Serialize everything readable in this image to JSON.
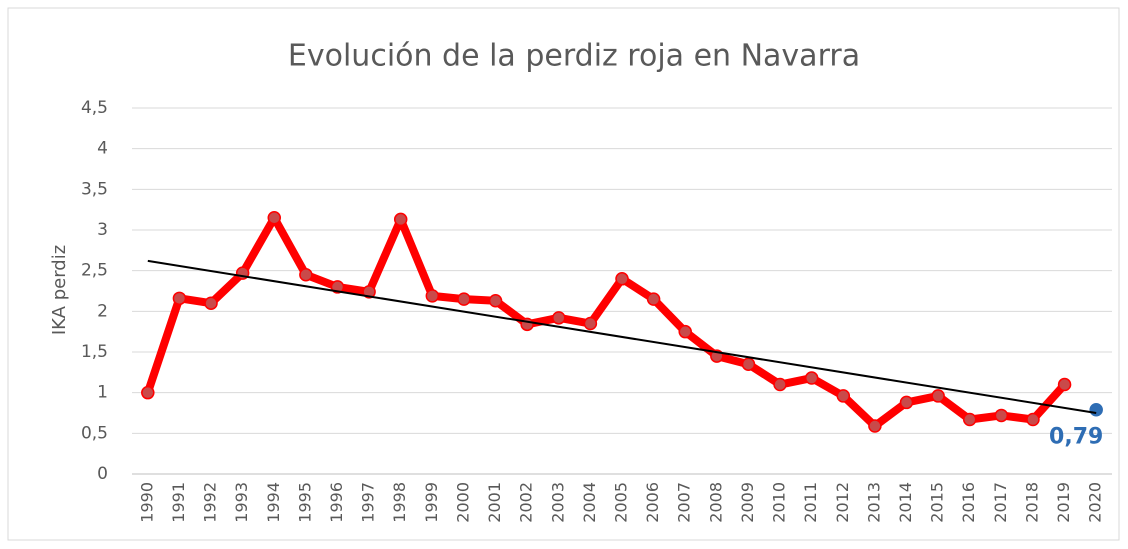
{
  "chart_data": {
    "type": "line",
    "title": "Evolución de la perdiz roja en Navarra",
    "y_label": "IKA perdiz",
    "categories": [
      "1990",
      "1991",
      "1992",
      "1993",
      "1994",
      "1995",
      "1996",
      "1997",
      "1998",
      "1999",
      "2000",
      "2001",
      "2002",
      "2003",
      "2004",
      "2005",
      "2006",
      "2007",
      "2008",
      "2009",
      "2010",
      "2011",
      "2012",
      "2013",
      "2014",
      "2015",
      "2016",
      "2017",
      "2018",
      "2019",
      "2020"
    ],
    "series": [
      {
        "color": "#ff0000",
        "values": [
          1.0,
          2.16,
          2.1,
          2.47,
          3.15,
          2.45,
          2.3,
          2.24,
          3.13,
          2.19,
          2.15,
          2.13,
          1.84,
          1.92,
          1.85,
          2.4,
          2.15,
          1.75,
          1.45,
          1.35,
          1.1,
          1.18,
          0.96,
          0.59,
          0.88,
          0.96,
          0.67,
          0.72,
          0.67,
          1.1,
          null
        ]
      },
      {
        "color": "#2e6db4",
        "values": [
          null,
          null,
          null,
          null,
          null,
          null,
          null,
          null,
          null,
          null,
          null,
          null,
          null,
          null,
          null,
          null,
          null,
          null,
          null,
          null,
          null,
          null,
          null,
          null,
          null,
          null,
          null,
          null,
          null,
          null,
          0.79
        ],
        "value_labels": [
          null,
          null,
          null,
          null,
          null,
          null,
          null,
          null,
          null,
          null,
          null,
          null,
          null,
          null,
          null,
          null,
          null,
          null,
          null,
          null,
          null,
          null,
          null,
          null,
          null,
          null,
          null,
          null,
          null,
          null,
          "0,79"
        ]
      }
    ],
    "trendline": {
      "color": "#000000",
      "values": [
        2.62,
        0.75
      ]
    },
    "ylim": [
      0,
      4.5
    ],
    "yticks": [
      0,
      {
        "value": 0.5,
        "label": "0,5"
      },
      1,
      {
        "value": 1.5,
        "label": "1,5"
      },
      2,
      {
        "value": 2.5,
        "label": "2,5"
      },
      3,
      {
        "value": 3.5,
        "label": "3,5"
      },
      4,
      {
        "value": 4.5,
        "label": "4,5"
      }
    ],
    "grid": true
  }
}
